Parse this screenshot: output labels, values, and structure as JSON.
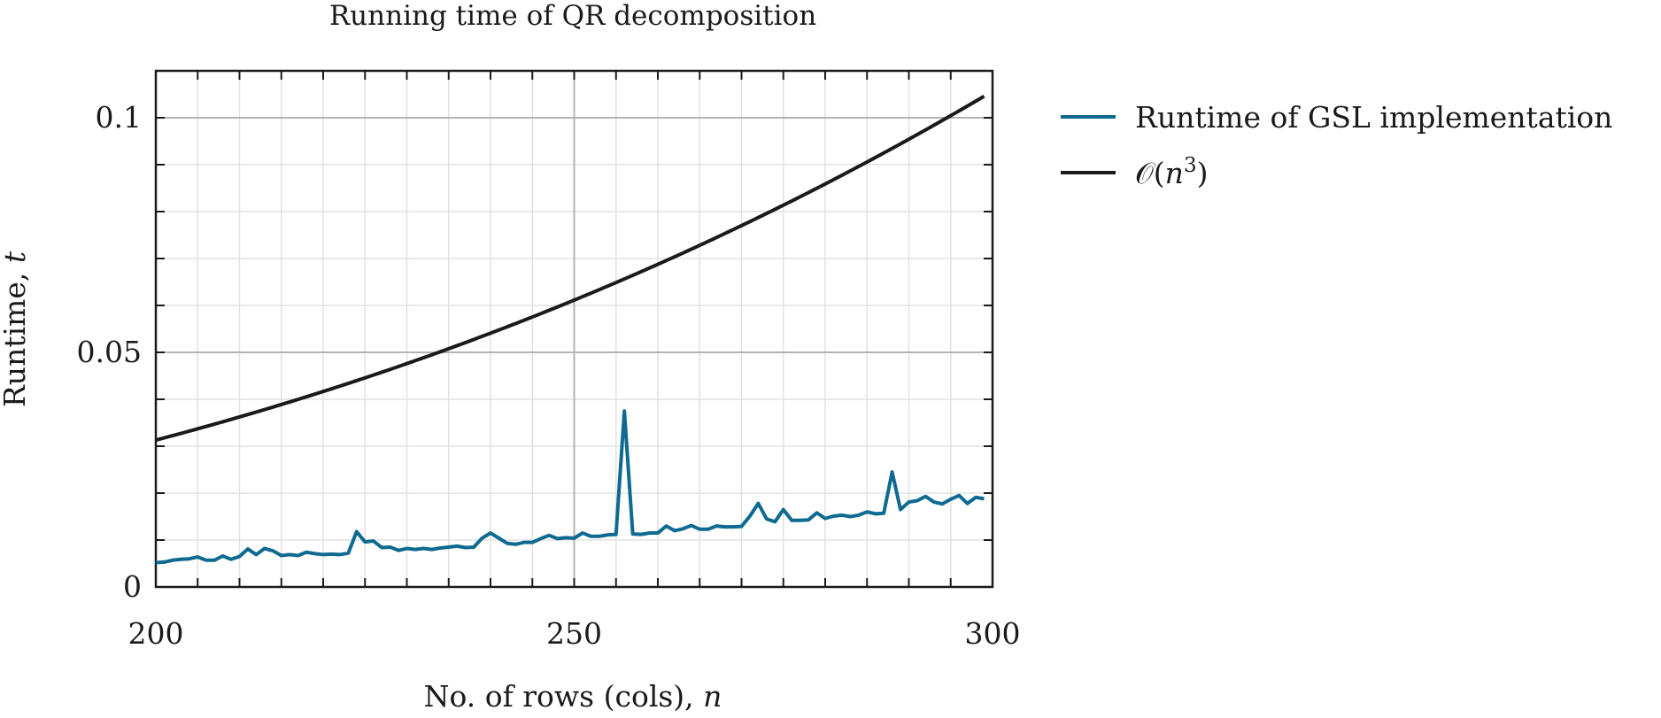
{
  "chart_data": {
    "type": "line",
    "title": "Running time of QR decomposition",
    "xlabel": {
      "text": "No. of rows (cols), ",
      "var": "n"
    },
    "ylabel": {
      "text": "Runtime, ",
      "var": "t"
    },
    "xlim": [
      200,
      300
    ],
    "ylim": [
      0,
      0.11
    ],
    "xticks": [
      200,
      250,
      300
    ],
    "xtick_labels": [
      "200",
      "250",
      "300"
    ],
    "yticks": [
      0,
      0.05,
      0.1
    ],
    "ytick_labels": [
      "0",
      "0.05",
      "0.1"
    ],
    "grid": true,
    "legend_position": "outside-right-top",
    "series": [
      {
        "name": "Runtime of GSL implementation",
        "color": "#0f6a92",
        "x": [
          200,
          201,
          202,
          203,
          204,
          205,
          206,
          207,
          208,
          209,
          210,
          211,
          212,
          213,
          214,
          215,
          216,
          217,
          218,
          219,
          220,
          221,
          222,
          223,
          224,
          225,
          226,
          227,
          228,
          229,
          230,
          231,
          232,
          233,
          234,
          235,
          236,
          237,
          238,
          239,
          240,
          241,
          242,
          243,
          244,
          245,
          246,
          247,
          248,
          249,
          250,
          251,
          252,
          253,
          254,
          255,
          256,
          257,
          258,
          259,
          260,
          261,
          262,
          263,
          264,
          265,
          266,
          267,
          268,
          269,
          270,
          271,
          272,
          273,
          274,
          275,
          276,
          277,
          278,
          279,
          280,
          281,
          282,
          283,
          284,
          285,
          286,
          287,
          288,
          289,
          290,
          291,
          292,
          293,
          294,
          295,
          296,
          297,
          298,
          299
        ],
        "values": [
          0.0052,
          0.0053,
          0.0057,
          0.0059,
          0.006,
          0.0064,
          0.0057,
          0.0057,
          0.0066,
          0.0059,
          0.0065,
          0.0081,
          0.0069,
          0.0082,
          0.0077,
          0.0067,
          0.0069,
          0.0067,
          0.0074,
          0.0071,
          0.0069,
          0.007,
          0.0069,
          0.0072,
          0.0118,
          0.0096,
          0.0098,
          0.0084,
          0.0085,
          0.0078,
          0.0082,
          0.008,
          0.0082,
          0.008,
          0.0083,
          0.0085,
          0.0087,
          0.0084,
          0.0085,
          0.0104,
          0.0115,
          0.0104,
          0.0093,
          0.0091,
          0.0095,
          0.0095,
          0.0103,
          0.011,
          0.0103,
          0.0105,
          0.0104,
          0.0115,
          0.0108,
          0.0108,
          0.0111,
          0.0112,
          0.0375,
          0.0113,
          0.0112,
          0.0115,
          0.0115,
          0.013,
          0.012,
          0.0124,
          0.0131,
          0.0123,
          0.0123,
          0.013,
          0.0128,
          0.0128,
          0.0129,
          0.0151,
          0.0178,
          0.0145,
          0.0139,
          0.0165,
          0.0142,
          0.0142,
          0.0143,
          0.0158,
          0.0146,
          0.0151,
          0.0153,
          0.015,
          0.0153,
          0.016,
          0.0156,
          0.0157,
          0.0245,
          0.0165,
          0.0181,
          0.0184,
          0.0193,
          0.0181,
          0.0177,
          0.0187,
          0.0195,
          0.0178,
          0.0191,
          0.0188
        ]
      },
      {
        "name": "O(n^3)",
        "color": "#1a1a1a",
        "formula": "0.0313*(n/200)^3",
        "x_range": [
          200,
          299
        ],
        "y_start": 0.0313,
        "y_end": 0.1048
      }
    ],
    "legend": [
      {
        "label": "Runtime of GSL implementation",
        "color": "#0f6a92"
      },
      {
        "label_prefix": "𝒪(",
        "label_var": "n",
        "label_sup": "3",
        "label_suffix": ")",
        "color": "#1a1a1a"
      }
    ]
  }
}
